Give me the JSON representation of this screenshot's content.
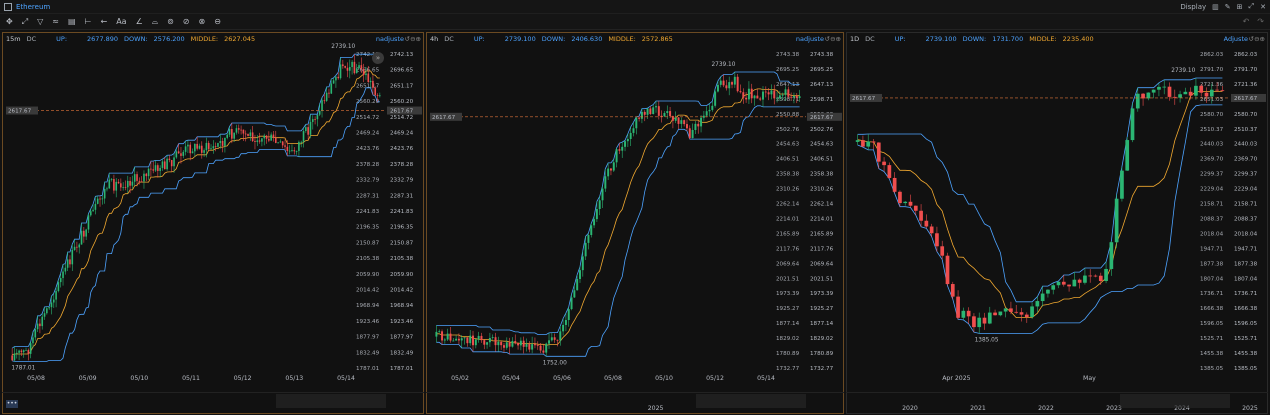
{
  "window": {
    "title": "Ethereum",
    "display_label": "Display"
  },
  "toolbar": {
    "tools": [
      "✥",
      "⤢",
      "▽",
      "≈",
      "▤",
      "⊢",
      "←",
      "Aa",
      "∠",
      "⌓",
      "⊚",
      "⊘",
      "⊗",
      "⊖"
    ],
    "tool_icons": [
      "crosshair-icon",
      "trendline-icon",
      "pitchfork-icon",
      "wave-icon",
      "shapes-icon",
      "measure-icon",
      "arrow-icon",
      "text-icon",
      "angle-icon",
      "magnet-icon",
      "eye-icon",
      "hide-icon",
      "delete-icon",
      "toggle-icon"
    ],
    "undo_label": "↶",
    "redo_label": "↷"
  },
  "panels": [
    {
      "timeframe": "15m",
      "indicator": "DC",
      "up_label": "UP:",
      "up": "2677.890",
      "down_label": "DOWN:",
      "down": "2576.200",
      "mid_label": "MIDDLE:",
      "mid": "2627.045",
      "adjust": "nadjuste",
      "yticks": [
        "2742.13",
        "2696.65",
        "2651.17",
        "2560.20",
        "2514.72",
        "2469.24",
        "2423.76",
        "2378.28",
        "2332.79",
        "2287.31",
        "2241.83",
        "2196.35",
        "2150.87",
        "2105.38",
        "2059.90",
        "2014.42",
        "1968.94",
        "1923.46",
        "1877.97",
        "1832.49",
        "1787.01"
      ],
      "price_tag": "2617.67",
      "high_label": "2739.10",
      "low_label": "1787.01",
      "xticks": [
        "05/08",
        "05/09",
        "05/10",
        "05/11",
        "05/12",
        "05/13",
        "05/14"
      ],
      "bottom_labels": []
    },
    {
      "timeframe": "4h",
      "indicator": "DC",
      "up_label": "UP:",
      "up": "2739.100",
      "down_label": "DOWN:",
      "down": "2406.630",
      "mid_label": "MIDDLE:",
      "mid": "2572.865",
      "adjust": "nadjuste",
      "yticks": [
        "2743.38",
        "2695.25",
        "2647.13",
        "2598.71",
        "2550.88",
        "2502.76",
        "2454.63",
        "2406.51",
        "2358.38",
        "2310.26",
        "2262.14",
        "2214.01",
        "2165.89",
        "2117.76",
        "2069.64",
        "2021.51",
        "1973.39",
        "1925.27",
        "1877.14",
        "1829.02",
        "1780.89",
        "1732.77"
      ],
      "price_tag": "2617.67",
      "high_label": "2739.10",
      "low_label": "1752.00",
      "xticks": [
        "05/02",
        "05/04",
        "05/06",
        "05/08",
        "05/10",
        "05/12",
        "05/14"
      ],
      "bottom_labels": [
        "2025"
      ]
    },
    {
      "timeframe": "1D",
      "indicator": "DC",
      "up_label": "UP:",
      "up": "2739.100",
      "down_label": "DOWN:",
      "down": "1731.700",
      "mid_label": "MIDDLE:",
      "mid": "2235.400",
      "adjust": "Adjuste",
      "yticks": [
        "2862.03",
        "2791.70",
        "2721.36",
        "2651.03",
        "2580.70",
        "2510.37",
        "2440.03",
        "2369.70",
        "2299.37",
        "2229.04",
        "2158.71",
        "2088.37",
        "2018.04",
        "1947.71",
        "1877.38",
        "1807.04",
        "1736.71",
        "1666.38",
        "1596.05",
        "1525.71",
        "1455.38",
        "1385.05"
      ],
      "price_tag": "2617.67",
      "high_label": "2739.10",
      "low_label": "1385.05",
      "xticks": [
        "Apr 2025",
        "May"
      ],
      "bottom_labels": [
        "2020",
        "2021",
        "2022",
        "2023",
        "2024",
        "2025"
      ]
    }
  ],
  "colors": {
    "up": "#4da3ff",
    "mid": "#f0a830",
    "bull": "#2bb673",
    "bear": "#f04e4e",
    "price_line": "#e0743a"
  }
}
